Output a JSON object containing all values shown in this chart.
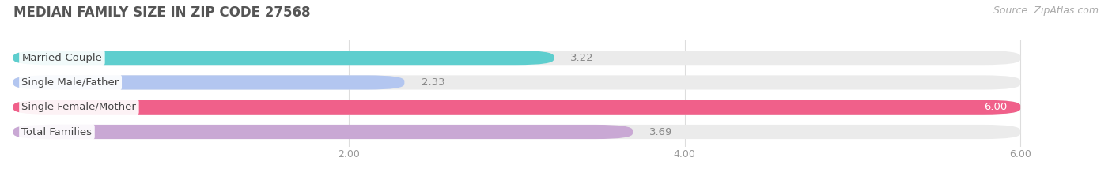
{
  "title": "MEDIAN FAMILY SIZE IN ZIP CODE 27568",
  "source": "Source: ZipAtlas.com",
  "categories": [
    "Married-Couple",
    "Single Male/Father",
    "Single Female/Mother",
    "Total Families"
  ],
  "values": [
    3.22,
    2.33,
    6.0,
    3.69
  ],
  "bar_colors": [
    "#5ecece",
    "#b3c6f0",
    "#f0608a",
    "#c9a8d4"
  ],
  "xlim_data": [
    0,
    6.0
  ],
  "xlim_display": [
    0,
    6.4
  ],
  "xticks": [
    2.0,
    4.0,
    6.0
  ],
  "xtick_labels": [
    "2.00",
    "4.00",
    "6.00"
  ],
  "label_fontsize": 9.5,
  "value_fontsize": 9.5,
  "title_fontsize": 12,
  "source_fontsize": 9,
  "bar_height": 0.58,
  "background_color": "#ffffff",
  "grid_color": "#dddddd",
  "bar_bg_color": "#ebebeb",
  "value_inside_bar_color": "#ffffff",
  "value_outside_bar_color": "#888888"
}
